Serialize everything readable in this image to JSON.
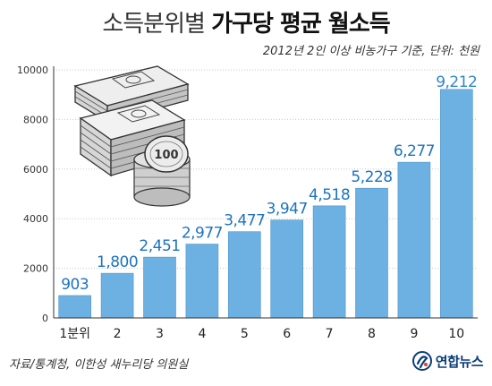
{
  "header": {
    "title_part1": "소득분위별",
    "title_part2": "가구당 평균 월소득",
    "subtitle": "2012년 2인 이상 비농가구 기준, 단위: 천원"
  },
  "footer": {
    "source": "자료/통계청, 이한성 새누리당 의원실",
    "brand": "연합뉴스"
  },
  "illustration": {
    "coin_label": "100"
  },
  "colors": {
    "bar": "#6db1e2",
    "bar_edge": "#4d95cc",
    "value_label": "#1d73bf",
    "gridline": "#c8c8c8",
    "axis": "#333333"
  },
  "chart_data": {
    "type": "bar",
    "title": "소득분위별 가구당 평균 월소득",
    "subtitle": "2012년 2인 이상 비농가구 기준, 단위: 천원",
    "categories": [
      "1분위",
      "2",
      "3",
      "4",
      "5",
      "6",
      "7",
      "8",
      "9",
      "10"
    ],
    "values": [
      903,
      1800,
      2451,
      2977,
      3477,
      3947,
      4518,
      5228,
      6277,
      9212
    ],
    "value_labels": [
      "903",
      "1,800",
      "2,451",
      "2,977",
      "3,477",
      "3,947",
      "4,518",
      "5,228",
      "6,277",
      "9,212"
    ],
    "ylim": [
      0,
      10000
    ],
    "yticks": [
      0,
      2000,
      4000,
      6000,
      8000,
      10000
    ],
    "ytick_labels": [
      "0",
      "2000",
      "4000",
      "6000",
      "8000",
      "10000"
    ],
    "grid": true,
    "xlabel": "",
    "ylabel": ""
  }
}
